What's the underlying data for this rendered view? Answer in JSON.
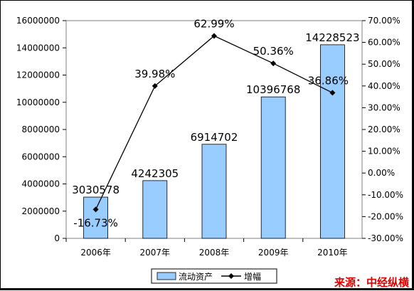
{
  "chart_data": {
    "type": "bar",
    "categories": [
      "2006年",
      "2007年",
      "2008年",
      "2009年",
      "2010年"
    ],
    "series": [
      {
        "name": "流动资产",
        "type": "bar",
        "axis": "left",
        "values": [
          3030578,
          4242305,
          6914702,
          10396768,
          14228523
        ],
        "labels": [
          "3030578",
          "4242305",
          "6914702",
          "10396768",
          "14228523"
        ],
        "color": "#99ccff"
      },
      {
        "name": "增幅",
        "type": "line",
        "axis": "right",
        "values": [
          -16.73,
          39.98,
          62.99,
          50.36,
          36.86
        ],
        "labels": [
          "-16.73%",
          "39.98%",
          "62.99%",
          "50.36%",
          "36.86%"
        ],
        "color": "#000000"
      }
    ],
    "left_axis": {
      "min": 0,
      "max": 16000000,
      "step": 2000000,
      "ticks": [
        "0",
        "2000000",
        "4000000",
        "6000000",
        "8000000",
        "10000000",
        "12000000",
        "14000000",
        "16000000"
      ]
    },
    "right_axis": {
      "min": -30,
      "max": 70,
      "step": 10,
      "ticks": [
        "-30.00%",
        "-20.00%",
        "-10.00%",
        "0.00%",
        "10.00%",
        "20.00%",
        "30.00%",
        "40.00%",
        "50.00%",
        "60.00%",
        "70.00%"
      ]
    },
    "grid": false,
    "legend": "bottom",
    "source": "来源：中经纵横"
  }
}
